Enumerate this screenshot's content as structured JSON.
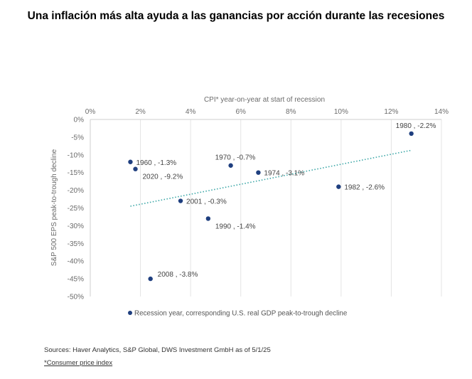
{
  "title": "Una inflación más alta ayuda a las ganancias por acción durante las recesiones",
  "sources": "Sources: Haver Analytics, S&P Global, DWS Investment GmbH as of 5/1/25",
  "footnote": "*Consumer price index",
  "colors": {
    "point": "#1f3f7f",
    "trendline": "#3aa6a6",
    "grid": "#e4e4e4",
    "axis_text": "#6b6b6b"
  },
  "chart_data": {
    "type": "scatter",
    "xlabel": "CPI* year-on-year at start of recession",
    "ylabel": "S&P 500 EPS peak-to-trough decline",
    "x_axis_position": "top",
    "xlim": [
      0,
      14
    ],
    "ylim": [
      -50,
      0
    ],
    "x_ticks": [
      0,
      2,
      4,
      6,
      8,
      10,
      12,
      14
    ],
    "x_tick_labels": [
      "0%",
      "2%",
      "4%",
      "6%",
      "8%",
      "10%",
      "12%",
      "14%"
    ],
    "y_ticks": [
      0,
      -5,
      -10,
      -15,
      -20,
      -25,
      -30,
      -35,
      -40,
      -45,
      -50
    ],
    "y_tick_labels": [
      "0%",
      "-5%",
      "-10%",
      "-15%",
      "-20%",
      "-25%",
      "-30%",
      "-35%",
      "-40%",
      "-45%",
      "-50%"
    ],
    "grid": "vertical",
    "legend": {
      "placement": "bottom-left",
      "label": "Recession year, corresponding U.S. real GDP peak-to-trough decline"
    },
    "points": [
      {
        "label": "1960 , -1.3%",
        "x": 1.6,
        "y": -12,
        "label_side": "right"
      },
      {
        "label": "2020 , -9.2%",
        "x": 1.8,
        "y": -14,
        "label_side": "below-right"
      },
      {
        "label": "1970 , -0.7%",
        "x": 5.6,
        "y": -13,
        "label_side": "above-left"
      },
      {
        "label": "1974 , -3.1%",
        "x": 6.7,
        "y": -15,
        "label_side": "right"
      },
      {
        "label": "1980 , -2.2%",
        "x": 12.8,
        "y": -4,
        "label_side": "above-left"
      },
      {
        "label": "1982 , -2.6%",
        "x": 9.9,
        "y": -19,
        "label_side": "right"
      },
      {
        "label": "2001 , -0.3%",
        "x": 3.6,
        "y": -23,
        "label_side": "right"
      },
      {
        "label": "1990 , -1.4%",
        "x": 4.7,
        "y": -28,
        "label_side": "below-right"
      },
      {
        "label": "2008 , -3.8%",
        "x": 2.4,
        "y": -45,
        "label_side": "above-right"
      }
    ],
    "trendline": {
      "style": "dotted",
      "from": {
        "x": 1.6,
        "y": -24.5
      },
      "to": {
        "x": 12.8,
        "y": -8.7
      }
    }
  }
}
